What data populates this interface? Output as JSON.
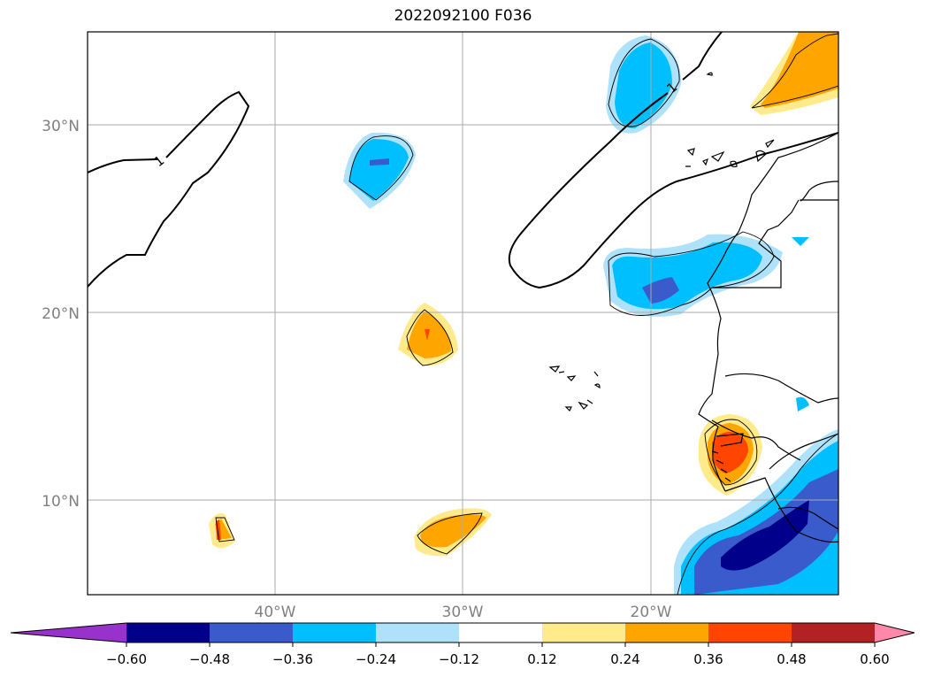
{
  "title": "2022092100 F036",
  "map": {
    "lat_labels": [
      "30°N",
      "20°N",
      "10°N"
    ],
    "lon_labels": [
      "40°W",
      "30°W",
      "20°W"
    ],
    "contour_label": "1",
    "gridlines": true
  },
  "colorbar": {
    "ticks": [
      "−0.60",
      "−0.48",
      "−0.36",
      "−0.24",
      "−0.12",
      "0.12",
      "0.24",
      "0.36",
      "0.48",
      "0.60"
    ],
    "colors": [
      "#9932cc",
      "#00008b",
      "#3a5bcb",
      "#00bfff",
      "#aee2fb",
      "#ffffff",
      "#ffeb8c",
      "#ffa500",
      "#ff4500",
      "#b22222",
      "#ff88aa"
    ],
    "extend": "both"
  }
}
